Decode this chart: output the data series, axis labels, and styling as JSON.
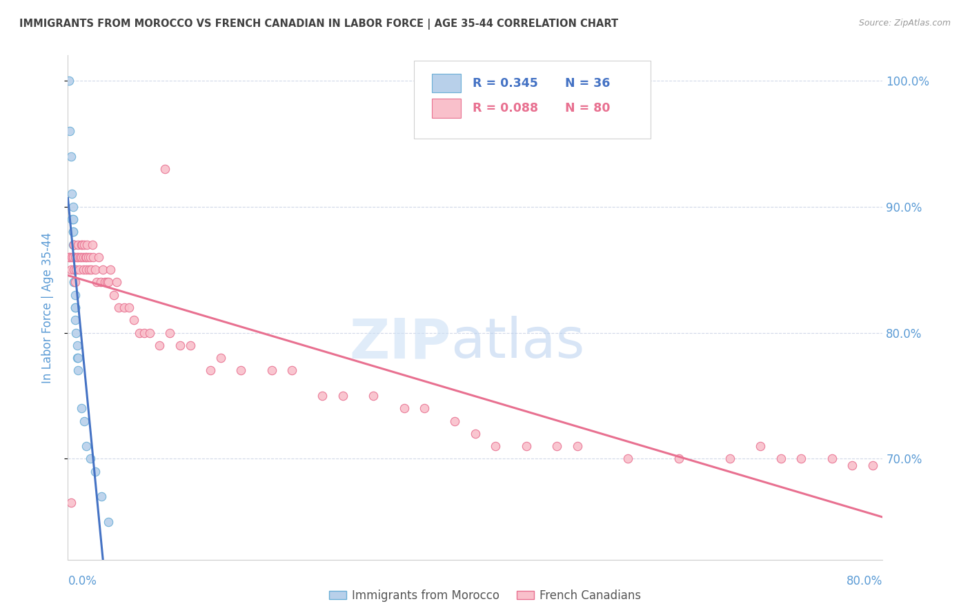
{
  "title": "IMMIGRANTS FROM MOROCCO VS FRENCH CANADIAN IN LABOR FORCE | AGE 35-44 CORRELATION CHART",
  "source": "Source: ZipAtlas.com",
  "ylabel": "In Labor Force | Age 35-44",
  "xlim": [
    0.0,
    0.8
  ],
  "ylim": [
    0.62,
    1.02
  ],
  "yticks": [
    0.7,
    0.8,
    0.9,
    1.0
  ],
  "ytick_labels": [
    "70.0%",
    "80.0%",
    "90.0%",
    "100.0%"
  ],
  "legend_r1": "R = 0.345",
  "legend_n1": "N = 36",
  "legend_r2": "R = 0.088",
  "legend_n2": "N = 80",
  "color_morocco_fill": "#b8d0ea",
  "color_morocco_edge": "#6aaed6",
  "color_french_fill": "#f9c0cb",
  "color_french_edge": "#e87090",
  "color_line_morocco": "#4472c4",
  "color_line_french": "#e87090",
  "color_axis_labels": "#5b9bd5",
  "color_title": "#404040",
  "color_grid": "#d0d8e8",
  "morocco_x": [
    0.001,
    0.002,
    0.003,
    0.004,
    0.004,
    0.005,
    0.005,
    0.005,
    0.005,
    0.005,
    0.005,
    0.006,
    0.006,
    0.006,
    0.006,
    0.006,
    0.006,
    0.006,
    0.006,
    0.006,
    0.007,
    0.007,
    0.007,
    0.007,
    0.008,
    0.009,
    0.009,
    0.01,
    0.01,
    0.013,
    0.016,
    0.018,
    0.022,
    0.027,
    0.033,
    0.04
  ],
  "morocco_y": [
    1.0,
    0.96,
    0.94,
    0.91,
    0.89,
    0.9,
    0.89,
    0.89,
    0.88,
    0.88,
    0.87,
    0.87,
    0.87,
    0.86,
    0.86,
    0.86,
    0.85,
    0.85,
    0.84,
    0.84,
    0.83,
    0.82,
    0.82,
    0.81,
    0.8,
    0.79,
    0.78,
    0.78,
    0.77,
    0.74,
    0.73,
    0.71,
    0.7,
    0.69,
    0.67,
    0.65
  ],
  "french_x": [
    0.001,
    0.002,
    0.003,
    0.004,
    0.005,
    0.006,
    0.006,
    0.007,
    0.008,
    0.009,
    0.01,
    0.01,
    0.011,
    0.012,
    0.013,
    0.013,
    0.014,
    0.015,
    0.015,
    0.016,
    0.017,
    0.018,
    0.018,
    0.019,
    0.02,
    0.021,
    0.022,
    0.023,
    0.024,
    0.025,
    0.027,
    0.028,
    0.03,
    0.032,
    0.034,
    0.036,
    0.038,
    0.04,
    0.042,
    0.045,
    0.048,
    0.05,
    0.055,
    0.06,
    0.065,
    0.07,
    0.075,
    0.08,
    0.09,
    0.1,
    0.11,
    0.12,
    0.14,
    0.15,
    0.17,
    0.2,
    0.22,
    0.25,
    0.27,
    0.3,
    0.33,
    0.35,
    0.38,
    0.4,
    0.42,
    0.45,
    0.48,
    0.5,
    0.55,
    0.6,
    0.65,
    0.68,
    0.7,
    0.72,
    0.75,
    0.77,
    0.79,
    0.003,
    0.007,
    0.095
  ],
  "french_y": [
    0.86,
    0.86,
    0.85,
    0.86,
    0.86,
    0.85,
    0.87,
    0.86,
    0.85,
    0.86,
    0.86,
    0.87,
    0.85,
    0.86,
    0.86,
    0.87,
    0.87,
    0.85,
    0.86,
    0.87,
    0.86,
    0.86,
    0.85,
    0.87,
    0.86,
    0.85,
    0.86,
    0.85,
    0.87,
    0.86,
    0.85,
    0.84,
    0.86,
    0.84,
    0.85,
    0.84,
    0.84,
    0.84,
    0.85,
    0.83,
    0.84,
    0.82,
    0.82,
    0.82,
    0.81,
    0.8,
    0.8,
    0.8,
    0.79,
    0.8,
    0.79,
    0.79,
    0.77,
    0.78,
    0.77,
    0.77,
    0.77,
    0.75,
    0.75,
    0.75,
    0.74,
    0.74,
    0.73,
    0.72,
    0.71,
    0.71,
    0.71,
    0.71,
    0.7,
    0.7,
    0.7,
    0.71,
    0.7,
    0.7,
    0.7,
    0.695,
    0.695,
    0.665,
    0.84,
    0.93
  ]
}
